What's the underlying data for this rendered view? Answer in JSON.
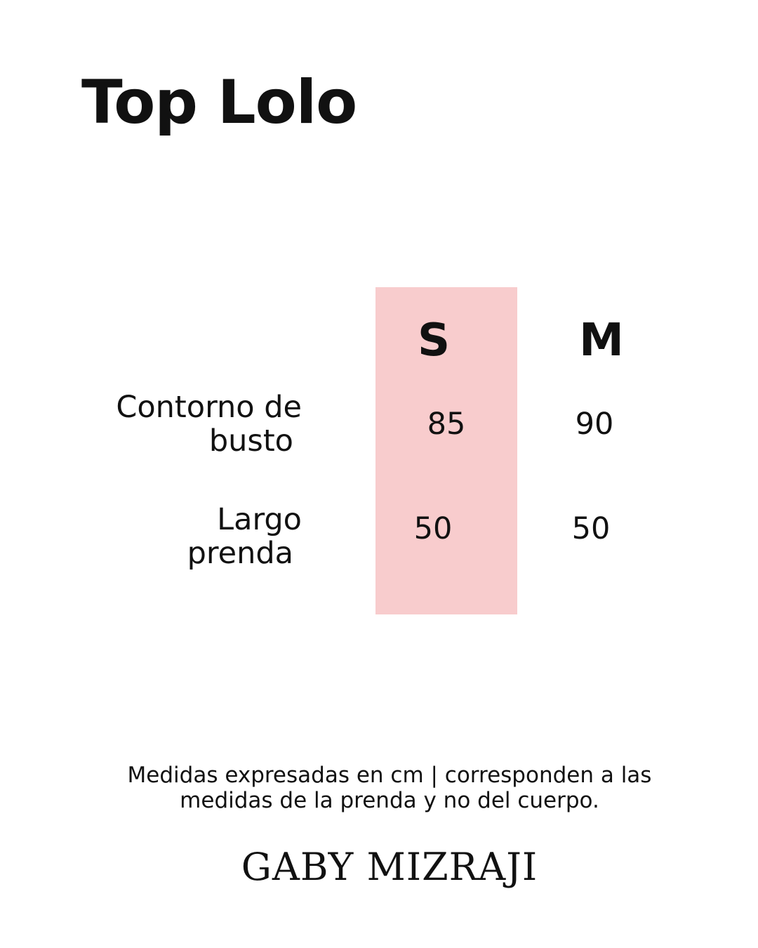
{
  "title": "Top Lolo",
  "colors": {
    "highlight": "#f8cccd",
    "text": "#111111",
    "background": "#ffffff"
  },
  "table": {
    "columns": [
      "S",
      "M"
    ],
    "highlighted_column": "S",
    "rows": [
      {
        "label_line1": "Contorno de",
        "label_line2": "busto",
        "values": [
          "85",
          "90"
        ]
      },
      {
        "label_line1": "Largo",
        "label_line2": "prenda",
        "values": [
          "50",
          "50"
        ]
      }
    ]
  },
  "note": {
    "line1": "Medidas expresadas en cm | corresponden a las",
    "line2": "medidas de la prenda y no del cuerpo."
  },
  "brand": "GABY MIZRAJI"
}
